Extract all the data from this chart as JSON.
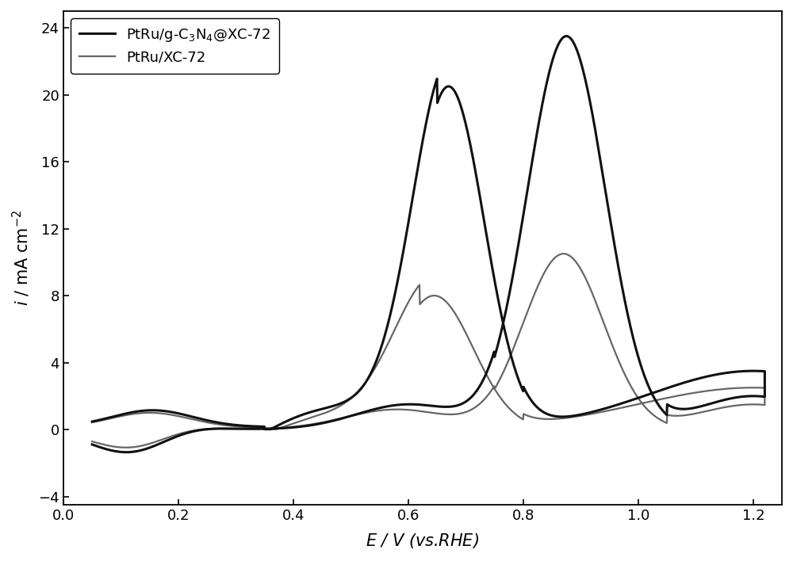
{
  "title": "",
  "xlabel": "$E$ / V (vs.RHE)",
  "ylabel": "$i$ / mA cm$^{-2}$",
  "xlim": [
    0.0,
    1.25
  ],
  "ylim": [
    -4.5,
    25
  ],
  "xticks": [
    0.0,
    0.2,
    0.4,
    0.6,
    0.8,
    1.0,
    1.2
  ],
  "yticks": [
    -4,
    0,
    4,
    8,
    12,
    16,
    20,
    24
  ],
  "curve1_color": "#111111",
  "curve1_lw": 2.2,
  "curve2_color": "#666666",
  "curve2_lw": 1.6,
  "legend_label1": "PtRu/g-C$_3$N$_4$@XC-72",
  "legend_label2": "PtRu/XC-72",
  "bg_color": "#ffffff"
}
